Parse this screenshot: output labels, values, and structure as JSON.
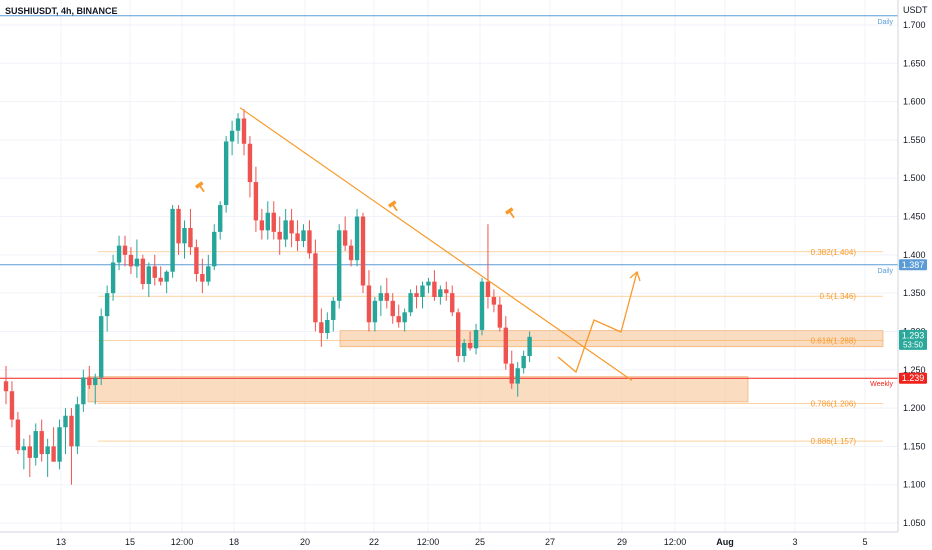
{
  "header": {
    "title": "SUSHIUSDT, 4h, BINANCE",
    "currency": "USDT"
  },
  "colors": {
    "up": "#26a69a",
    "down": "#ef5350",
    "wick": "#5d606b",
    "orange": "#f79a2a",
    "zone": "#f7c9a0",
    "blue": "#5b9cd6",
    "red": "#f0231c",
    "teal": "#2aa89a",
    "grid": "#f0f3fa"
  },
  "y_axis": {
    "ticks": [
      "1.700",
      "1.650",
      "1.600",
      "1.550",
      "1.500",
      "1.450",
      "1.400",
      "1.350",
      "1.300",
      "1.250",
      "1.200",
      "1.150",
      "1.100",
      "1.050"
    ]
  },
  "x_axis": {
    "ticks": [
      "13",
      "15",
      "12:00",
      "18",
      "20",
      "22",
      "12:00",
      "25",
      "27",
      "29",
      "12:00",
      "Aug",
      "3",
      "5"
    ]
  },
  "fib_levels": [
    {
      "label": "0.382(1.404)",
      "value": 1.404
    },
    {
      "label": "0.5(1.346)",
      "value": 1.346
    },
    {
      "label": "0.618(1.288)",
      "value": 1.288
    },
    {
      "label": "0.786(1.206)",
      "value": 1.206
    },
    {
      "label": "0.886(1.157)",
      "value": 1.157
    }
  ],
  "horizontal_lines": [
    {
      "name": "daily-top",
      "label": "Daily",
      "value": 1.712,
      "color": "blue"
    },
    {
      "name": "daily",
      "label": "Daily",
      "value": 1.387,
      "color": "blue"
    },
    {
      "name": "weekly",
      "label": "Weekly",
      "value": 1.239,
      "color": "red"
    }
  ],
  "price_tags": [
    {
      "name": "daily-price-tag",
      "value": "1.387",
      "color": "blue"
    },
    {
      "name": "current-price-tag",
      "value": "1.293",
      "timer": "53:50",
      "color": "teal"
    },
    {
      "name": "weekly-price-tag",
      "value": "1.239",
      "color": "red"
    }
  ],
  "zones": [
    {
      "name": "upper-zone",
      "from": 1.28,
      "to": 1.301
    },
    {
      "name": "lower-zone",
      "from": 1.208,
      "to": 1.241
    }
  ],
  "trendline": {
    "x1": 0,
    "y1": 1.592,
    "x2": 1,
    "y2": 1.236
  },
  "chart_data": {
    "type": "candlestick",
    "symbol": "SUSHIUSDT",
    "timeframe": "4h",
    "exchange": "BINANCE",
    "ylim": [
      1.04,
      1.72
    ],
    "candles": [
      [
        1.235,
        1.255,
        1.205,
        1.222
      ],
      [
        1.222,
        1.235,
        1.175,
        1.185
      ],
      [
        1.185,
        1.195,
        1.14,
        1.145
      ],
      [
        1.145,
        1.16,
        1.12,
        1.15
      ],
      [
        1.15,
        1.165,
        1.11,
        1.135
      ],
      [
        1.135,
        1.18,
        1.125,
        1.17
      ],
      [
        1.17,
        1.185,
        1.13,
        1.14
      ],
      [
        1.14,
        1.16,
        1.11,
        1.15
      ],
      [
        1.15,
        1.175,
        1.135,
        1.13
      ],
      [
        1.13,
        1.185,
        1.12,
        1.175
      ],
      [
        1.175,
        1.2,
        1.14,
        1.19
      ],
      [
        1.19,
        1.2,
        1.1,
        1.15
      ],
      [
        1.15,
        1.215,
        1.14,
        1.205
      ],
      [
        1.205,
        1.25,
        1.195,
        1.24
      ],
      [
        1.24,
        1.255,
        1.225,
        1.23
      ],
      [
        1.23,
        1.245,
        1.205,
        1.24
      ],
      [
        1.24,
        1.33,
        1.23,
        1.32
      ],
      [
        1.32,
        1.36,
        1.3,
        1.35
      ],
      [
        1.35,
        1.4,
        1.34,
        1.39
      ],
      [
        1.39,
        1.425,
        1.38,
        1.412
      ],
      [
        1.412,
        1.425,
        1.385,
        1.4
      ],
      [
        1.4,
        1.41,
        1.375,
        1.385
      ],
      [
        1.385,
        1.42,
        1.37,
        1.395
      ],
      [
        1.395,
        1.4,
        1.355,
        1.362
      ],
      [
        1.362,
        1.39,
        1.345,
        1.385
      ],
      [
        1.385,
        1.4,
        1.36,
        1.37
      ],
      [
        1.37,
        1.385,
        1.36,
        1.365
      ],
      [
        1.365,
        1.38,
        1.35,
        1.378
      ],
      [
        1.378,
        1.465,
        1.37,
        1.46
      ],
      [
        1.46,
        1.465,
        1.4,
        1.415
      ],
      [
        1.415,
        1.445,
        1.395,
        1.435
      ],
      [
        1.435,
        1.46,
        1.4,
        1.41
      ],
      [
        1.41,
        1.42,
        1.365,
        1.375
      ],
      [
        1.375,
        1.395,
        1.35,
        1.365
      ],
      [
        1.365,
        1.4,
        1.36,
        1.385
      ],
      [
        1.385,
        1.44,
        1.38,
        1.43
      ],
      [
        1.43,
        1.47,
        1.42,
        1.465
      ],
      [
        1.465,
        1.555,
        1.455,
        1.548
      ],
      [
        1.548,
        1.575,
        1.53,
        1.562
      ],
      [
        1.562,
        1.585,
        1.545,
        1.578
      ],
      [
        1.578,
        1.59,
        1.53,
        1.545
      ],
      [
        1.545,
        1.555,
        1.475,
        1.495
      ],
      [
        1.495,
        1.515,
        1.43,
        1.445
      ],
      [
        1.445,
        1.46,
        1.42,
        1.432
      ],
      [
        1.432,
        1.47,
        1.42,
        1.455
      ],
      [
        1.455,
        1.47,
        1.42,
        1.43
      ],
      [
        1.43,
        1.45,
        1.4,
        1.42
      ],
      [
        1.42,
        1.46,
        1.41,
        1.445
      ],
      [
        1.445,
        1.46,
        1.41,
        1.428
      ],
      [
        1.428,
        1.445,
        1.405,
        1.418
      ],
      [
        1.418,
        1.44,
        1.41,
        1.432
      ],
      [
        1.432,
        1.445,
        1.395,
        1.402
      ],
      [
        1.402,
        1.42,
        1.3,
        1.312
      ],
      [
        1.312,
        1.33,
        1.28,
        1.298
      ],
      [
        1.298,
        1.325,
        1.29,
        1.315
      ],
      [
        1.315,
        1.345,
        1.3,
        1.34
      ],
      [
        1.34,
        1.44,
        1.33,
        1.432
      ],
      [
        1.432,
        1.45,
        1.405,
        1.412
      ],
      [
        1.412,
        1.42,
        1.385,
        1.393
      ],
      [
        1.393,
        1.46,
        1.385,
        1.45
      ],
      [
        1.45,
        1.455,
        1.35,
        1.36
      ],
      [
        1.36,
        1.38,
        1.3,
        1.312
      ],
      [
        1.312,
        1.345,
        1.3,
        1.34
      ],
      [
        1.34,
        1.36,
        1.32,
        1.35
      ],
      [
        1.35,
        1.37,
        1.33,
        1.34
      ],
      [
        1.34,
        1.35,
        1.31,
        1.32
      ],
      [
        1.32,
        1.335,
        1.305,
        1.312
      ],
      [
        1.312,
        1.33,
        1.3,
        1.325
      ],
      [
        1.325,
        1.355,
        1.32,
        1.35
      ],
      [
        1.35,
        1.36,
        1.33,
        1.345
      ],
      [
        1.345,
        1.365,
        1.33,
        1.36
      ],
      [
        1.36,
        1.37,
        1.35,
        1.365
      ],
      [
        1.365,
        1.38,
        1.34,
        1.345
      ],
      [
        1.345,
        1.36,
        1.335,
        1.355
      ],
      [
        1.355,
        1.365,
        1.34,
        1.35
      ],
      [
        1.35,
        1.36,
        1.32,
        1.325
      ],
      [
        1.325,
        1.33,
        1.26,
        1.268
      ],
      [
        1.268,
        1.29,
        1.26,
        1.285
      ],
      [
        1.285,
        1.3,
        1.275,
        1.278
      ],
      [
        1.278,
        1.31,
        1.27,
        1.302
      ],
      [
        1.302,
        1.37,
        1.295,
        1.365
      ],
      [
        1.365,
        1.44,
        1.33,
        1.345
      ],
      [
        1.345,
        1.355,
        1.325,
        1.335
      ],
      [
        1.335,
        1.345,
        1.3,
        1.305
      ],
      [
        1.305,
        1.32,
        1.25,
        1.258
      ],
      [
        1.258,
        1.275,
        1.225,
        1.232
      ],
      [
        1.232,
        1.26,
        1.215,
        1.252
      ],
      [
        1.252,
        1.275,
        1.245,
        1.268
      ],
      [
        1.268,
        1.3,
        1.26,
        1.293
      ]
    ]
  }
}
